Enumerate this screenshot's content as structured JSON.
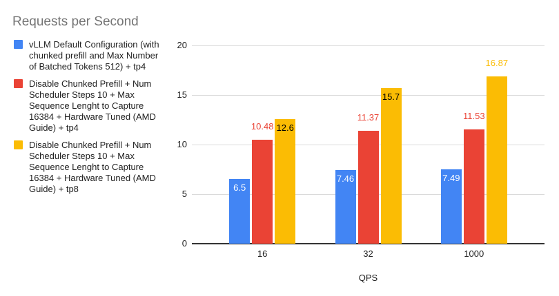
{
  "chart_data": {
    "type": "bar",
    "title": "Requests per Second",
    "xlabel": "QPS",
    "ylabel": "",
    "categories": [
      "16",
      "32",
      "1000"
    ],
    "ylim": [
      0,
      20
    ],
    "yticks": [
      0,
      5,
      10,
      15,
      20
    ],
    "grid": true,
    "legend_position": "left",
    "series": [
      {
        "name": "vLLM Default Configuration (with chunked prefill and Max Number of Batched Tokens 512) + tp4",
        "color": "#4285F4",
        "values": [
          6.5,
          7.46,
          7.49
        ],
        "data_labels": [
          "6.5",
          "7.46",
          "7.49"
        ],
        "label_placements": [
          "inside",
          "inside",
          "inside"
        ],
        "label_colors": [
          "#ffffff",
          "#ffffff",
          "#ffffff"
        ]
      },
      {
        "name": "Disable Chunked Prefill + Num Scheduler Steps 10 + Max Sequence Lenght to Capture 16384 + Hardware Tuned (AMD Guide) + tp4",
        "color": "#EA4335",
        "values": [
          10.48,
          11.37,
          11.53
        ],
        "data_labels": [
          "10.48",
          "11.37",
          "11.53"
        ],
        "label_placements": [
          "above",
          "above",
          "above"
        ],
        "label_colors": [
          "#EA4335",
          "#EA4335",
          "#EA4335"
        ]
      },
      {
        "name": "Disable Chunked Prefill + Num Scheduler Steps 10 + Max Sequence Lenght to Capture 16384 + Hardware Tuned (AMD Guide) + tp8",
        "color": "#FBBC04",
        "values": [
          12.6,
          15.7,
          16.87
        ],
        "data_labels": [
          "12.6",
          "15.7",
          "16.87"
        ],
        "label_placements": [
          "inside",
          "inside",
          "above"
        ],
        "label_colors": [
          "#000000",
          "#000000",
          "#FBBC04"
        ]
      }
    ]
  },
  "colors": {
    "title_text": "#757575",
    "axis_text": "#212121",
    "gridline": "#dadada",
    "baseline": "#333333",
    "background": "#ffffff"
  }
}
